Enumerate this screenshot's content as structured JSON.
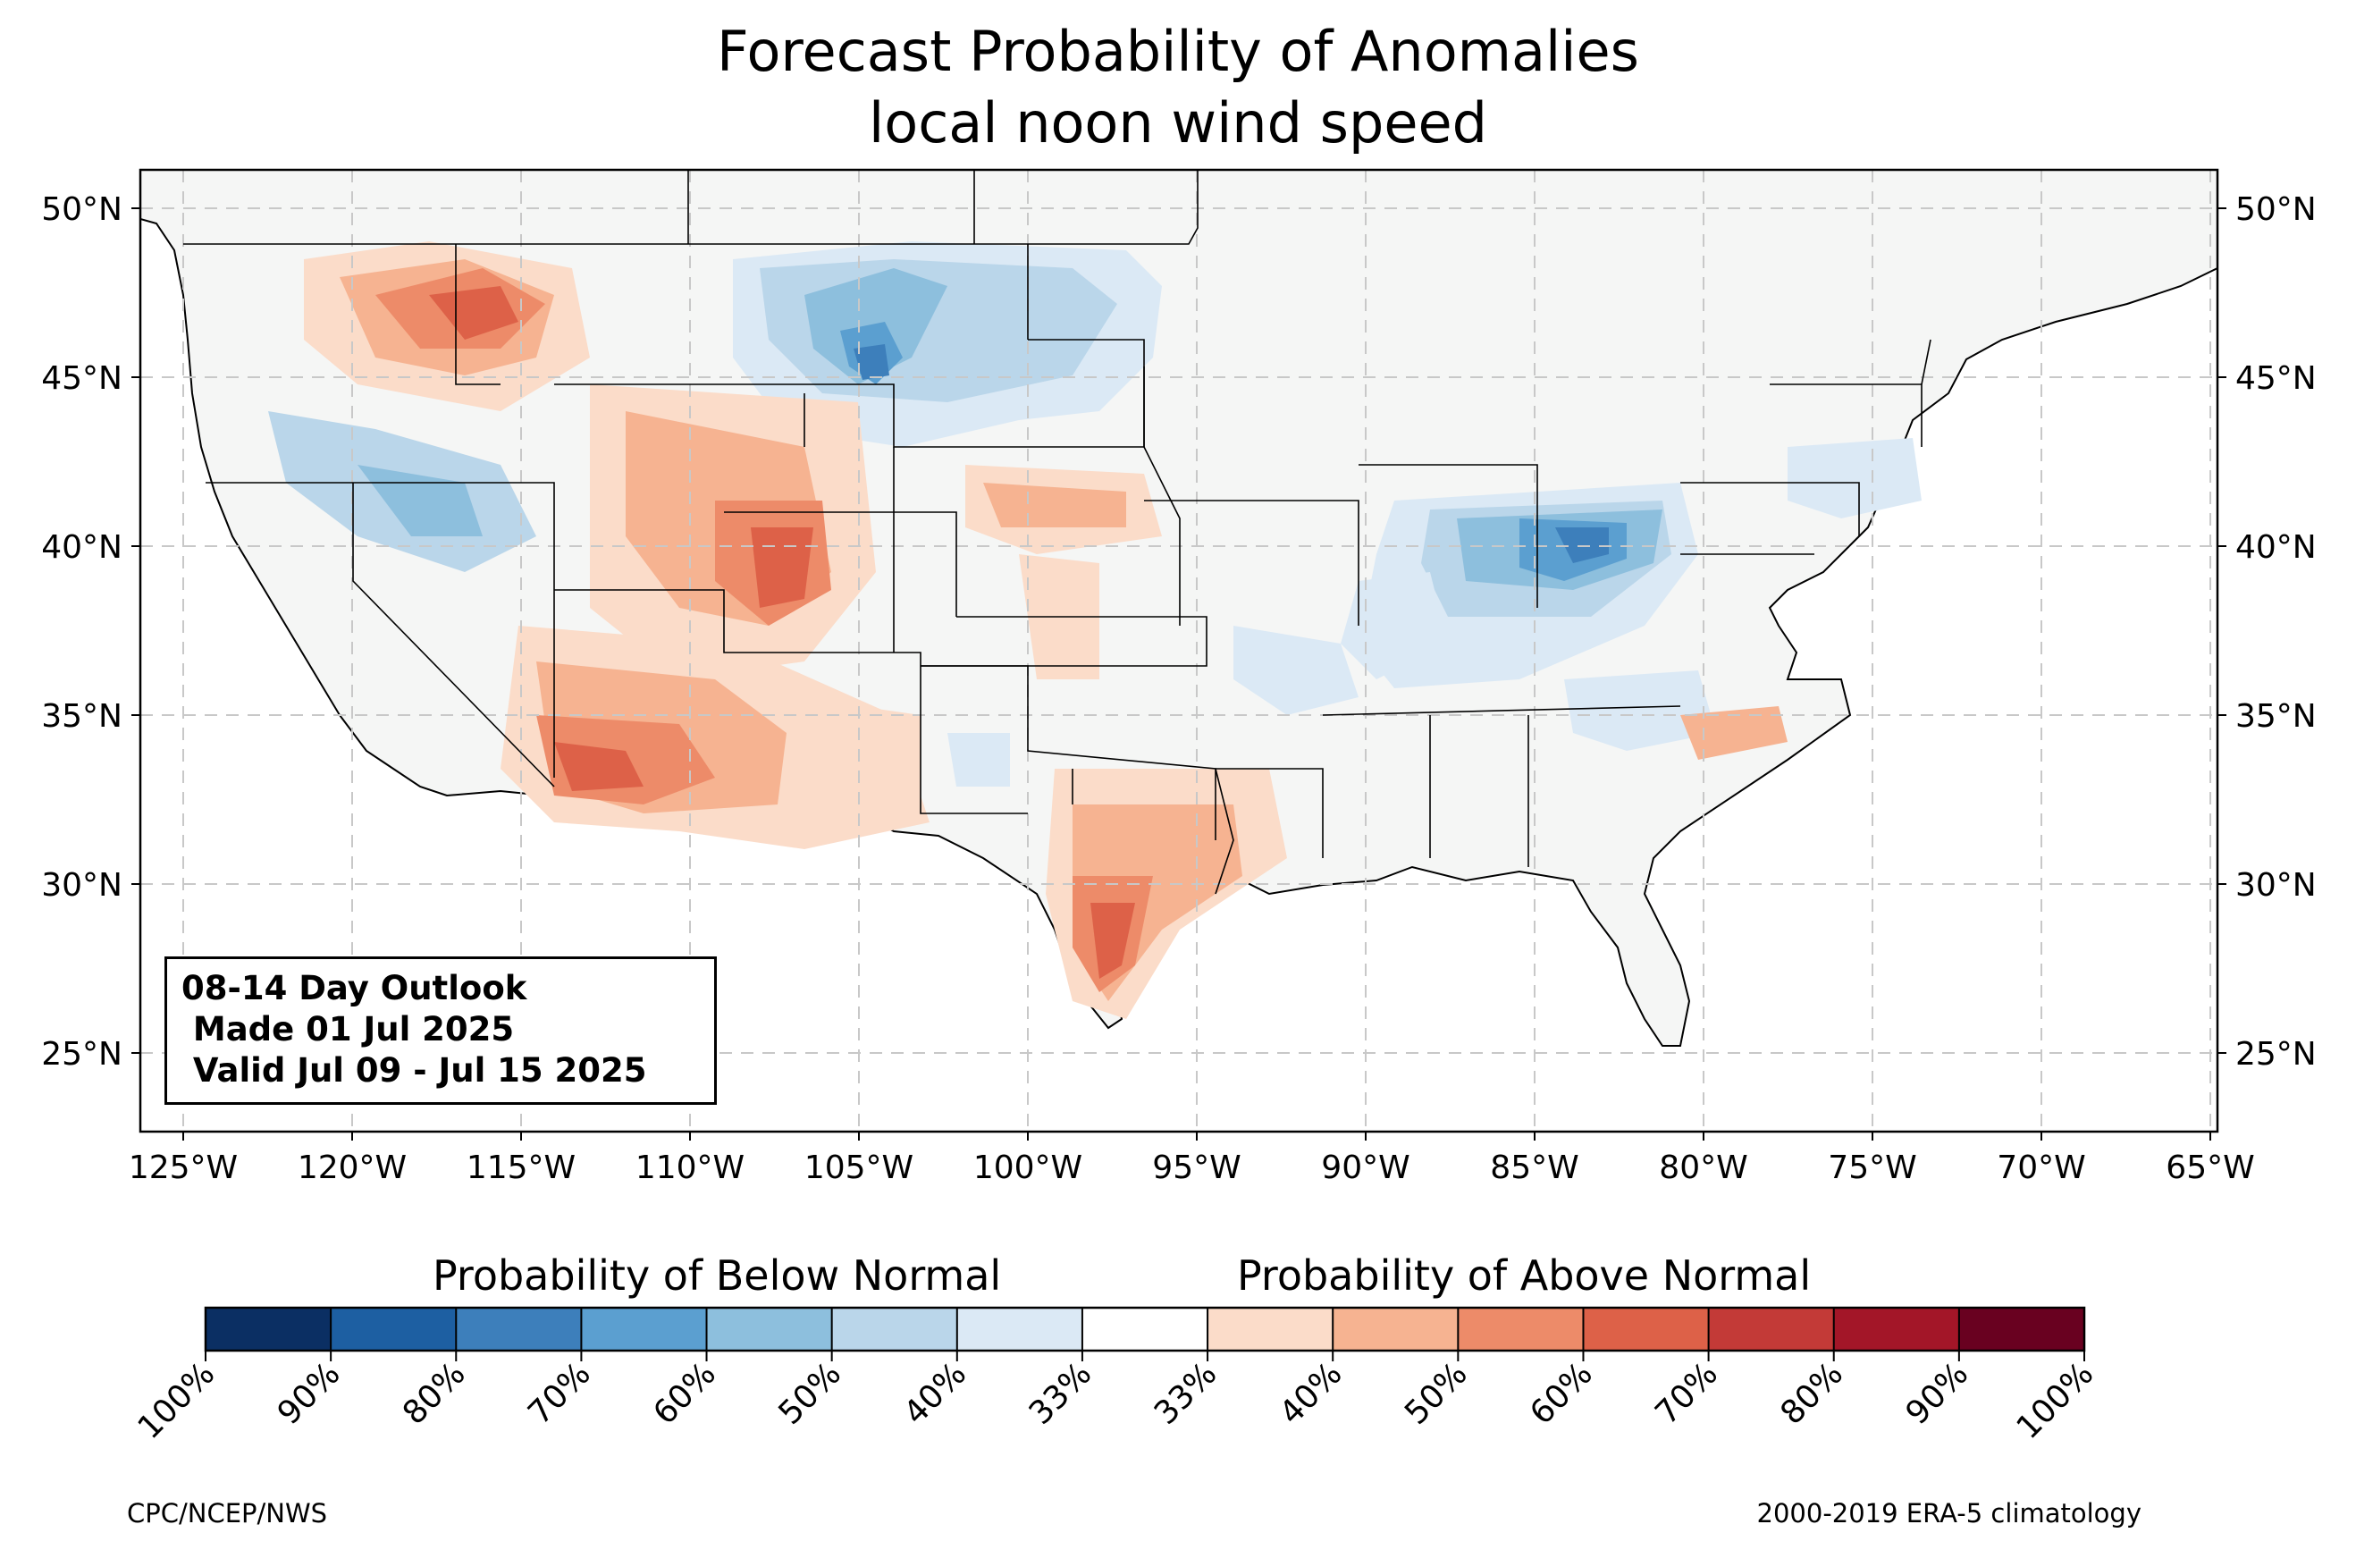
{
  "title": "Forecast Probability of Anomalies",
  "subtitle": "local noon wind speed",
  "outlook": {
    "line1": "08-14 Day Outlook",
    "line2": " Made 01 Jul 2025",
    "line3": " Valid Jul 09 - Jul 15 2025"
  },
  "lat_labels": [
    "50°N",
    "45°N",
    "40°N",
    "35°N",
    "30°N",
    "25°N"
  ],
  "lon_labels": [
    "125°W",
    "120°W",
    "115°W",
    "110°W",
    "105°W",
    "100°W",
    "95°W",
    "90°W",
    "85°W",
    "80°W",
    "75°W",
    "70°W",
    "65°W"
  ],
  "map_extent": {
    "lon": [
      -126.3,
      -64.9
    ],
    "lat": [
      22.8,
      51.2
    ]
  },
  "colorbar": {
    "below_title": "Probability of Below Normal",
    "above_title": "Probability of Above Normal",
    "tick_labels": [
      "100%",
      "90%",
      "80%",
      "70%",
      "60%",
      "50%",
      "40%",
      "33%",
      "33%",
      "40%",
      "50%",
      "60%",
      "70%",
      "80%",
      "90%",
      "100%"
    ],
    "colors": [
      "#0b2f63",
      "#1d5fa2",
      "#3d7fbb",
      "#5b9fd0",
      "#8dbfdd",
      "#bad6ea",
      "#dbe9f5",
      "#ffffff",
      "#fbdcc9",
      "#f6b391",
      "#ed8b69",
      "#dd6148",
      "#c33a37",
      "#a31628",
      "#690120"
    ]
  },
  "footer": {
    "left": "CPC/NCEP/NWS",
    "right": "2000-2019 ERA-5 climatology"
  }
}
